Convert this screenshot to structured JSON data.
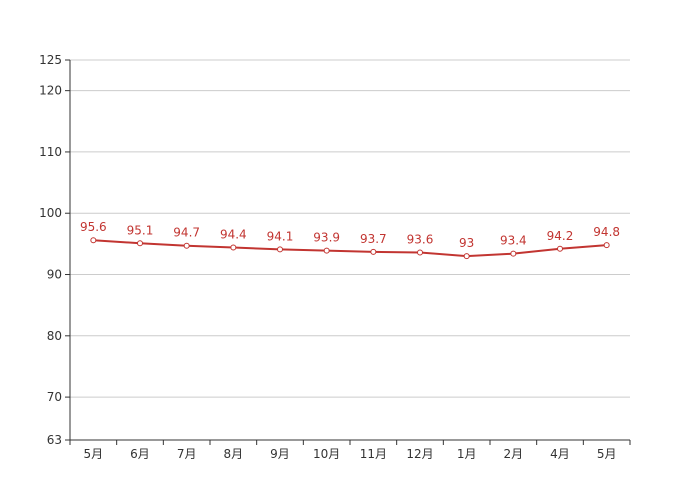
{
  "chart_data": {
    "type": "line",
    "categories": [
      "5月",
      "6月",
      "7月",
      "8月",
      "9月",
      "10月",
      "11月",
      "12月",
      "1月",
      "2月",
      "4月",
      "5月"
    ],
    "series": [
      {
        "values": [
          95.6,
          95.1,
          94.7,
          94.4,
          94.1,
          93.9,
          93.7,
          93.6,
          93,
          93.4,
          94.2,
          94.8
        ]
      }
    ],
    "yticks": [
      63,
      70,
      80,
      90,
      100,
      110,
      120,
      125
    ],
    "ylim": [
      63,
      125
    ],
    "grid": true,
    "data_labels": true,
    "colors": {
      "line": "#c23531",
      "grid": "#cccccc",
      "axis": "#333333",
      "label": "#c23531"
    }
  }
}
